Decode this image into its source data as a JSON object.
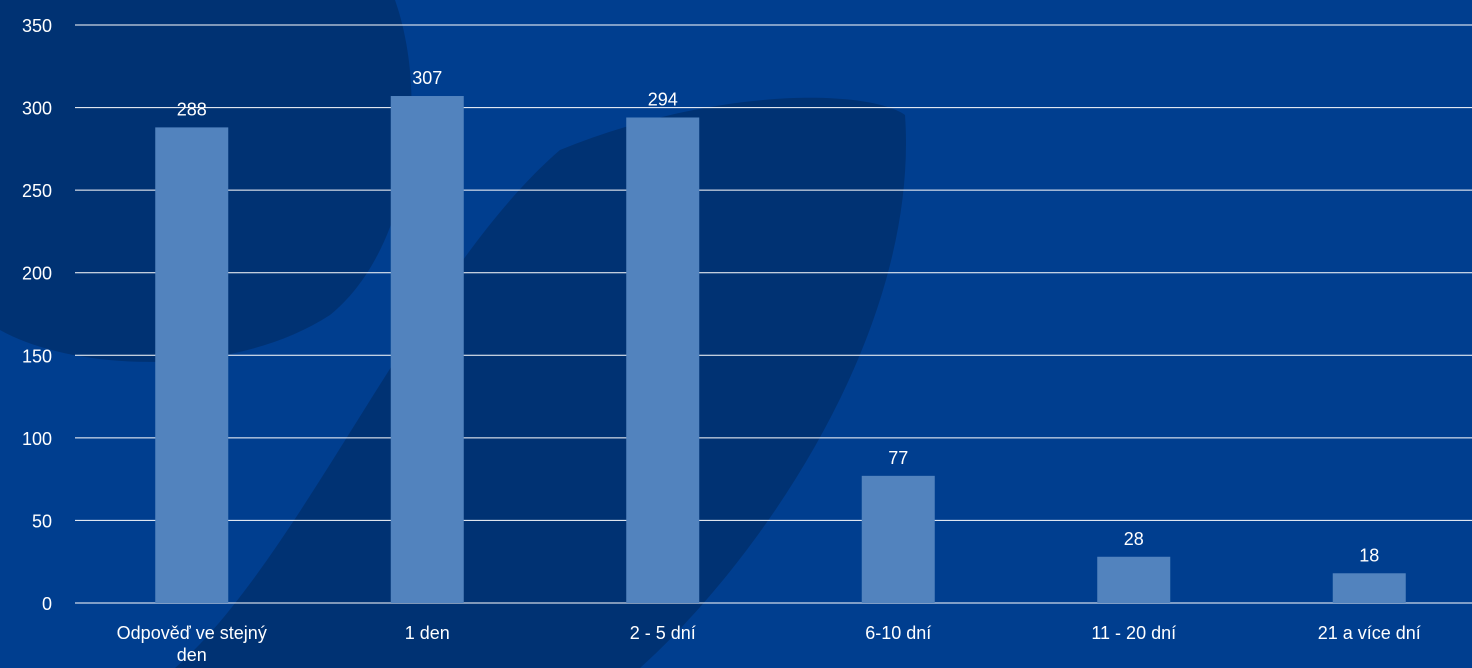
{
  "chart_data": {
    "type": "bar",
    "categories": [
      "Odpověď ve stejný den",
      "1 den",
      "2 - 5 dní",
      "6-10 dní",
      "11 - 20 dní",
      "21 a více dní"
    ],
    "values": [
      288,
      307,
      294,
      77,
      28,
      18
    ],
    "data_labels": [
      "288",
      "307",
      "294",
      "77",
      "28",
      "18"
    ],
    "y_ticks": [
      0,
      50,
      100,
      150,
      200,
      250,
      300,
      350
    ],
    "ylim": [
      0,
      350
    ],
    "title": "",
    "xlabel": "",
    "ylabel": "",
    "grid": true,
    "legend": "none"
  },
  "colors": {
    "background": "#003e8f",
    "background_shape": "#00306f",
    "bar": "#5283be",
    "gridline": "#ffffff",
    "text": "#ffffff"
  }
}
